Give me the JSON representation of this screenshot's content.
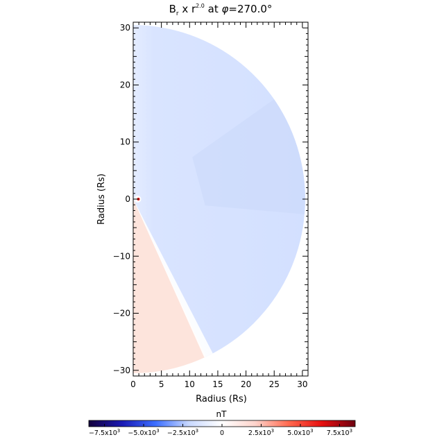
{
  "chart_data": {
    "type": "heatmap",
    "title": {
      "base": "B",
      "sub": "r",
      "mid": " x r",
      "sup": "2.0",
      "suffix": " at ",
      "phi": "φ",
      "phi_value": "=270.0°"
    },
    "xlabel": "Radius (Rs)",
    "ylabel": "Radius (Rs)",
    "xlim": [
      0,
      31
    ],
    "ylim": [
      -31,
      31
    ],
    "x_ticks": [
      0,
      5,
      10,
      15,
      20,
      25,
      30
    ],
    "x_tick_labels": [
      "0",
      "5",
      "10",
      "15",
      "20",
      "25",
      "30"
    ],
    "y_ticks": [
      -30,
      -20,
      -10,
      0,
      10,
      20,
      30
    ],
    "y_tick_labels": [
      "−30",
      "−20",
      "−10",
      "0",
      "10",
      "20",
      "30"
    ],
    "grid": false,
    "domain": {
      "shape": "half-disk",
      "outer_radius_rs": 30.5,
      "boundary_angle_deg_from_north": 155,
      "north_sector_value_nT": -450,
      "south_sector_value_nT": 300
    },
    "colorbar": {
      "label": "nT",
      "range": [
        -8500,
        8500
      ],
      "colors": [
        "#14003c",
        "#1a1ab4",
        "#3c6eff",
        "#c8d8ff",
        "#ffffff",
        "#ffd4cc",
        "#ff6a50",
        "#e60f0f",
        "#6e0010"
      ],
      "ticks": [
        -7500,
        -5000,
        -2500,
        0,
        2500,
        5000,
        7500
      ],
      "tick_labels": [
        {
          "mantissa": "−7.5x10",
          "exp": "3"
        },
        {
          "mantissa": "−5.0x10",
          "exp": "3"
        },
        {
          "mantissa": "−2.5x10",
          "exp": "3"
        },
        {
          "mantissa": "0",
          "exp": ""
        },
        {
          "mantissa": "2.5x10",
          "exp": "3"
        },
        {
          "mantissa": "5.0x10",
          "exp": "3"
        },
        {
          "mantissa": "7.5x10",
          "exp": "3"
        }
      ]
    }
  }
}
